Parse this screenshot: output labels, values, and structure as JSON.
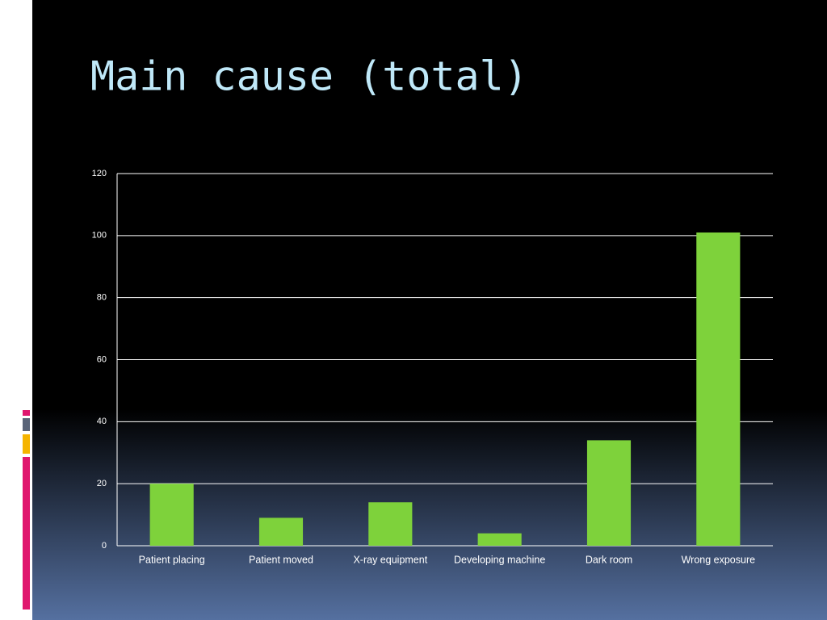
{
  "chart_data": {
    "type": "bar",
    "title": "Main cause (total)",
    "categories": [
      "Patient placing",
      "Patient moved",
      "X-ray equipment",
      "Developing machine",
      "Dark room",
      "Wrong exposure"
    ],
    "values": [
      20,
      9,
      14,
      4,
      34,
      101
    ],
    "color": "#7ed23b",
    "ylim": [
      0,
      120
    ],
    "yticks": [
      0,
      20,
      40,
      60,
      80,
      100,
      120
    ],
    "grid": true
  }
}
